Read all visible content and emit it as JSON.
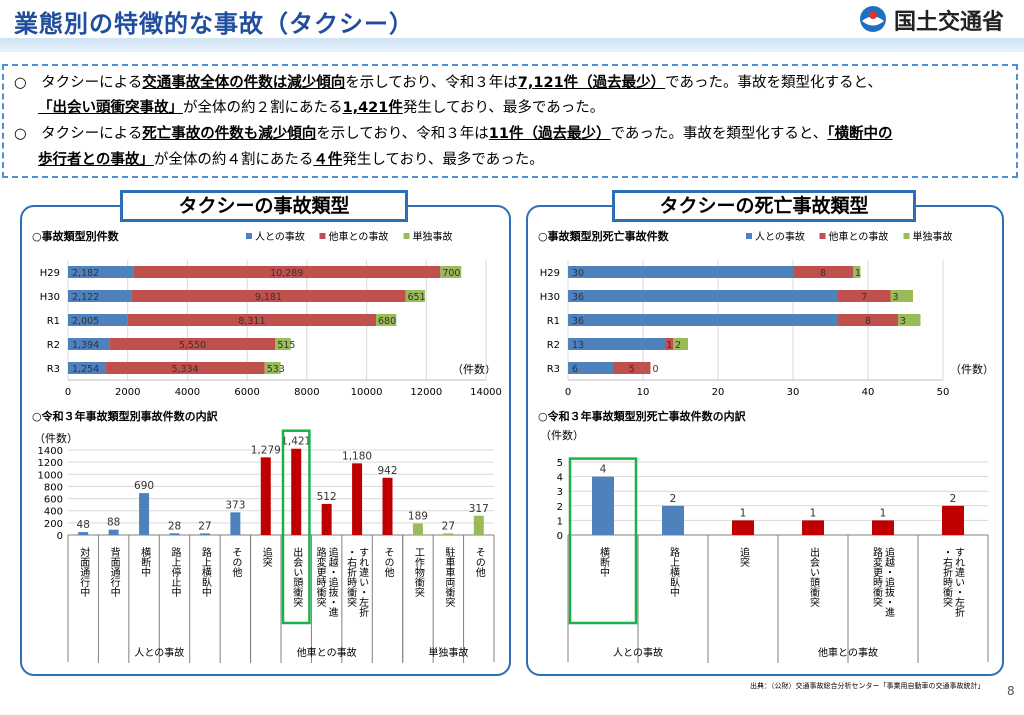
{
  "header": {
    "title": "業態別の特徴的な事故（タクシー）",
    "logo_text": "国土交通省"
  },
  "summary": {
    "line1_a": "タクシーによる",
    "line1_b": "交通事故全体の件数は減少傾向",
    "line1_c": "を示しており、令和３年は",
    "line1_d": "7,121件（過去最少）",
    "line1_e": "であった。事故を類型化すると、",
    "line2_a": "「出会い頭衝突事故」",
    "line2_b": "が全体の約２割にあたる",
    "line2_c": "1,421件",
    "line2_d": "発生しており、最多であった。",
    "line3_a": "タクシーによる",
    "line3_b": "死亡事故の件数も減少傾向",
    "line3_c": "を示しており、令和３年は",
    "line3_d": "11件（過去最少）",
    "line3_e": "であった。事故を類型化すると、",
    "line3_f": "「横断中の",
    "line4_a": "歩行者との事故」",
    "line4_b": "が全体の約４割にあたる",
    "line4_c": "４件",
    "line4_d": "発生しており、最多であった。",
    "bullet": "○"
  },
  "colors": {
    "person": "#4f81bd",
    "vehicle": "#c0504d",
    "single": "#9bbb59",
    "bar_red": "#c00000",
    "highlight": "#19b24a",
    "accent": "#2d6fb5"
  },
  "left_panel": {
    "title": "タクシーの事故類型",
    "top_subtitle": "○事故類型別件数",
    "bottom_subtitle": "○令和３年事故類型別事故件数の内訳",
    "unit": "（件数）",
    "y_unit": "（件数）"
  },
  "right_panel": {
    "title": "タクシーの死亡事故類型",
    "top_subtitle": "○事故類型別死亡事故件数",
    "bottom_subtitle": "○令和３年事故類型別死亡事故件数の内訳",
    "unit": "（件数）",
    "y_unit": "（件数）"
  },
  "legend": [
    "人との事故",
    "他車との事故",
    "単独事故"
  ],
  "chart_data": [
    {
      "type": "bar",
      "orientation": "horizontal",
      "stacked": true,
      "title": "○事故類型別件数",
      "categories": [
        "H29",
        "H30",
        "R1",
        "R2",
        "R3"
      ],
      "series": [
        {
          "name": "人との事故",
          "values": [
            2182,
            2122,
            2005,
            1394,
            1254
          ]
        },
        {
          "name": "他車との事故",
          "values": [
            10289,
            9181,
            8311,
            5550,
            5334
          ]
        },
        {
          "name": "単独事故",
          "values": [
            700,
            651,
            680,
            515,
            533
          ]
        }
      ],
      "xticks": [
        "0",
        "2000",
        "4000",
        "6000",
        "8000",
        "10000",
        "12000",
        "14000"
      ],
      "xlim": [
        0,
        14000
      ],
      "legend": "top-right",
      "grid": true
    },
    {
      "type": "bar",
      "orientation": "horizontal",
      "stacked": true,
      "title": "○事故類型別死亡事故件数",
      "categories": [
        "H29",
        "H30",
        "R1",
        "R2",
        "R3"
      ],
      "series": [
        {
          "name": "人との事故",
          "values": [
            30,
            36,
            36,
            13,
            6
          ]
        },
        {
          "name": "他車との事故",
          "values": [
            8,
            7,
            8,
            1,
            5
          ]
        },
        {
          "name": "単独事故",
          "values": [
            1,
            3,
            3,
            2,
            0
          ]
        }
      ],
      "xticks": [
        "0",
        "10",
        "20",
        "30",
        "40",
        "50"
      ],
      "xlim": [
        0,
        50
      ],
      "legend": "top-right",
      "grid": true
    },
    {
      "type": "bar",
      "title": "○令和３年事故類型別事故件数の内訳",
      "ylabel": "（件数）",
      "categories": [
        "対面通行中",
        "背面通行中",
        "横断中",
        "路上停止中",
        "路上横臥中",
        "その他",
        "追突",
        "出会い頭衝突",
        "追越・追抜・進路変更時衝突",
        "すれ違い・左折・右折時衝突",
        "その他",
        "工作物衝突",
        "駐車車両衝突",
        "その他"
      ],
      "values": [
        48,
        88,
        690,
        28,
        27,
        373,
        1279,
        1421,
        512,
        1180,
        942,
        189,
        27,
        317
      ],
      "value_labels": [
        "48",
        "88",
        "690",
        "28",
        "27",
        "373",
        "1,279",
        "1,421",
        "512",
        "1,180",
        "942",
        "189",
        "27",
        "317"
      ],
      "groups": [
        {
          "name": "人との事故",
          "count": 6
        },
        {
          "name": "他車との事故",
          "count": 5
        },
        {
          "name": "単独事故",
          "count": 3
        }
      ],
      "yticks": [
        "0",
        "200",
        "400",
        "600",
        "800",
        "1000",
        "1200",
        "1400"
      ],
      "ylim": [
        0,
        1400
      ],
      "highlight_index": 7
    },
    {
      "type": "bar",
      "title": "○令和３年事故類型別死亡事故件数の内訳",
      "ylabel": "（件数）",
      "categories": [
        "横断中",
        "路上横臥中",
        "追突",
        "出会い頭衝突",
        "追越・追抜・進路変更時衝突",
        "すれ違い・左折・右折時衝突"
      ],
      "values": [
        4,
        2,
        1,
        1,
        1,
        2
      ],
      "value_labels": [
        "4",
        "2",
        "1",
        "1",
        "1",
        "2"
      ],
      "groups": [
        {
          "name": "人との事故",
          "count": 2
        },
        {
          "name": "他車との事故",
          "count": 4
        }
      ],
      "yticks": [
        "0",
        "1",
        "2",
        "3",
        "4",
        "5"
      ],
      "ylim": [
        0,
        5
      ],
      "highlight_index": 0
    }
  ],
  "footer": {
    "source": "出典：（公財）交通事故総合分析センター「事業用自動車の交通事故統計」",
    "page": "8"
  }
}
